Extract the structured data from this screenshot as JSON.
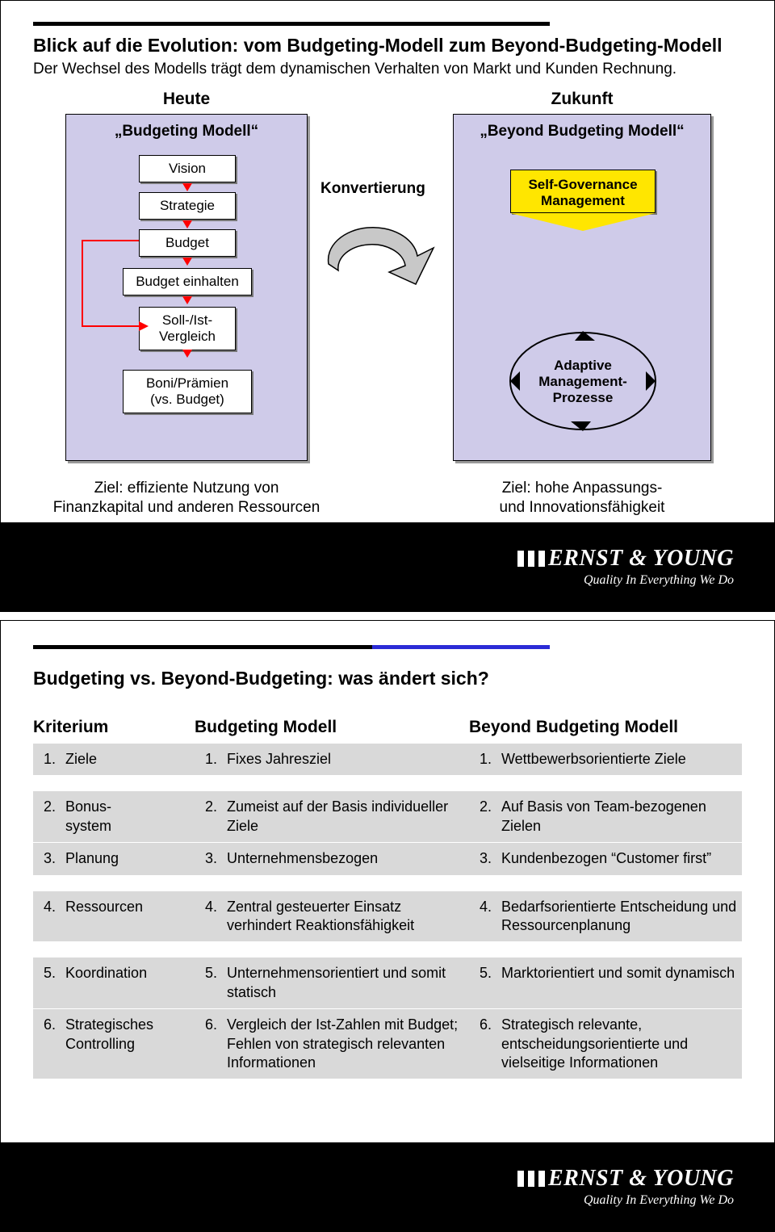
{
  "slide1": {
    "accent_color": "#000000",
    "title": "Blick auf die Evolution: vom Budgeting-Modell zum Beyond-Budgeting-Modell",
    "subtitle": "Der Wechsel des Modells trägt dem dynamischen Verhalten von Markt und Kunden Rechnung.",
    "col_left_heading": "Heute",
    "col_right_heading": "Zukunft",
    "big_left_title": "„Budgeting Modell“",
    "big_right_title": "„Beyond Budgeting Modell“",
    "big_box_fill": "#cfcbe9",
    "left_boxes": {
      "vision": "Vision",
      "strategie": "Strategie",
      "budget": "Budget",
      "einhalten": "Budget einhalten",
      "sollist": "Soll-/Ist-\nVergleich",
      "boni": "Boni/Prämien\n(vs. Budget)"
    },
    "right_boxes": {
      "selfgov": "Self-Governance\nManagement",
      "adaptive": "Adaptive\nManagement-\nProzesse"
    },
    "center_label": "Konvertierung",
    "goal_left": "Ziel: effiziente Nutzung von\nFinanzkapital und anderen Ressourcen",
    "goal_right": "Ziel: hohe Anpassungs-\nund Innovationsfähigkeit",
    "yellow": "#ffe600",
    "arrow_red": "#ff0000",
    "curve_fill": "#c8c8c8",
    "curve_stroke": "#000000"
  },
  "slide2": {
    "title": "Budgeting vs. Beyond-Budgeting: was ändert sich?",
    "headers": {
      "c1": "Kriterium",
      "c2": "Budgeting Modell",
      "c3": "Beyond Budgeting Modell"
    },
    "row_bg": "#d9d9d9",
    "fontsize_header": 21,
    "fontsize_cell": 18,
    "groups": [
      [
        {
          "n": "1.",
          "c1": "Ziele",
          "c2": "Fixes Jahresziel",
          "c3": "Wettbewerbsorientierte Ziele"
        }
      ],
      [
        {
          "n": "2.",
          "c1": "Bonus-\nsystem",
          "c2": "Zumeist auf der Basis individueller Ziele",
          "c3": "Auf Basis von Team-bezogenen Zielen"
        },
        {
          "n": "3.",
          "c1": "Planung",
          "c2": "Unternehmensbezogen",
          "c3": "Kundenbezogen “Customer first”"
        }
      ],
      [
        {
          "n": "4.",
          "c1": "Ressourcen",
          "c2": "Zentral gesteuerter Einsatz verhindert Reaktionsfähigkeit",
          "c3": "Bedarfsorientierte Entscheidung und Ressourcenplanung"
        }
      ],
      [
        {
          "n": "5.",
          "c1": "Koordination",
          "c2": "Unternehmensorientiert und somit statisch",
          "c3": "Marktorientiert und somit dynamisch"
        },
        {
          "n": "6.",
          "c1": "Strategisches Controlling",
          "c2": "Vergleich der Ist-Zahlen mit Budget; Fehlen von strategisch relevanten Informationen",
          "c3": "Strategisch relevante, entscheidungsorientierte und vielseitige Informationen"
        }
      ]
    ]
  },
  "footer": {
    "logo_text": "ERNST & YOUNG",
    "tagline": "Quality In Everything We Do"
  }
}
